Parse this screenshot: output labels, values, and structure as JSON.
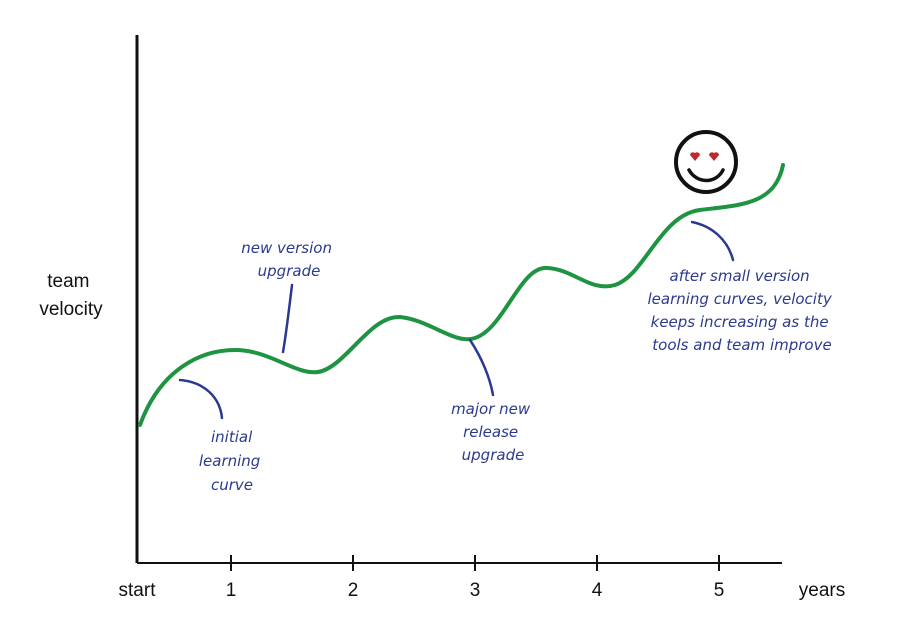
{
  "y_label": {
    "lines": [
      "team",
      "velocity"
    ]
  },
  "x_label": "years",
  "x_ticks": [
    "start",
    "1",
    "2",
    "3",
    "4",
    "5"
  ],
  "annotations": [
    {
      "lines": [
        "initial",
        "learning",
        "curve"
      ]
    },
    {
      "lines": [
        "new version",
        "upgrade"
      ]
    },
    {
      "lines": [
        "major new",
        "release",
        "upgrade"
      ]
    },
    {
      "lines": [
        "after small version",
        "learning curves, velocity",
        "keeps increasing as the",
        "tools and team improve"
      ]
    }
  ]
}
